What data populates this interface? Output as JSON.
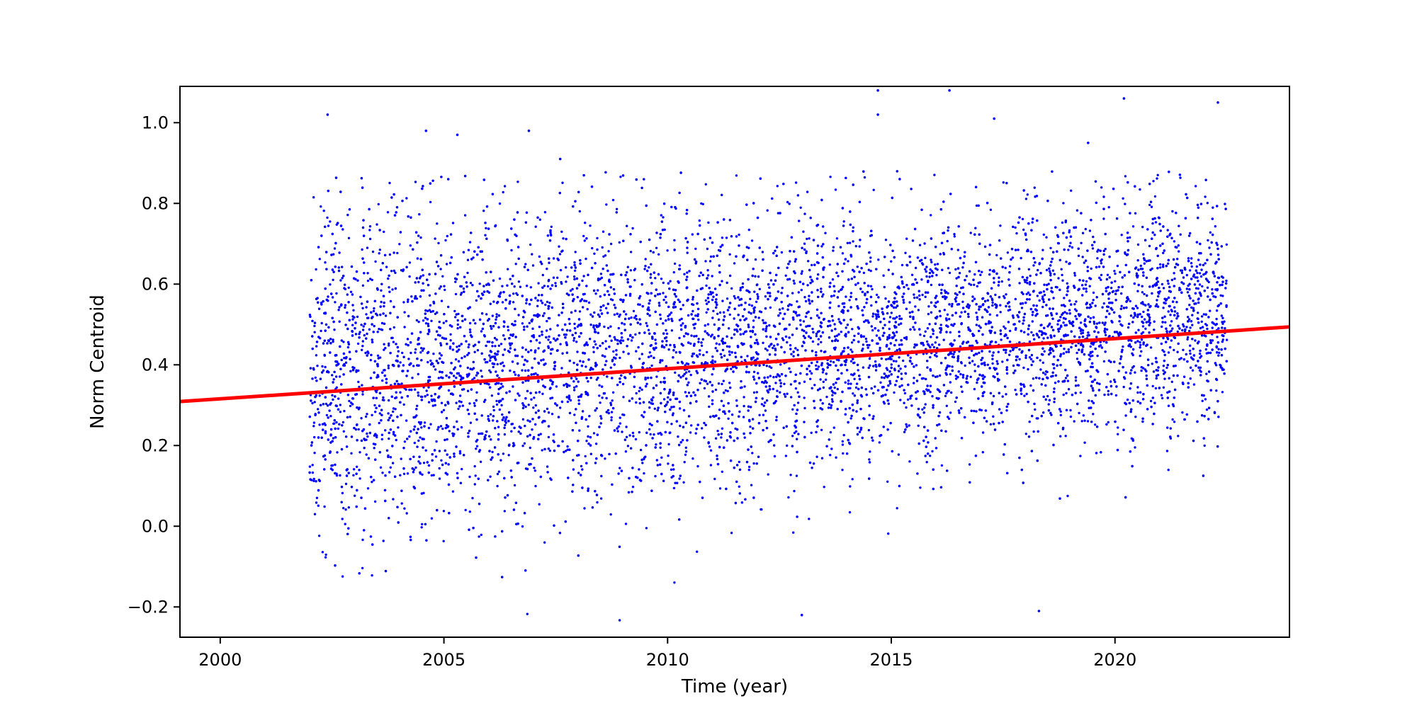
{
  "chart_data": {
    "type": "scatter",
    "title": "",
    "xlabel": "Time (year)",
    "ylabel": "Norm Centroid",
    "xlim": [
      1999.1,
      2023.9
    ],
    "ylim": [
      -0.275,
      1.09
    ],
    "xticks": [
      2000,
      2005,
      2010,
      2015,
      2020
    ],
    "yticks": [
      -0.2,
      0.0,
      0.2,
      0.4,
      0.6,
      0.8,
      1.0
    ],
    "xtick_labels": [
      "2000",
      "2005",
      "2010",
      "2015",
      "2020"
    ],
    "ytick_labels": [
      "−0.2",
      "0.0",
      "0.2",
      "0.4",
      "0.6",
      "0.8",
      "1.0"
    ],
    "grid": false,
    "legend": "none",
    "colors": {
      "points": "#0000ff",
      "trend": "#ff0000",
      "axes": "#000000"
    },
    "series": [
      {
        "kind": "points",
        "x_range": [
          2002.0,
          2022.5
        ],
        "y_center_trend": [
          [
            2002.0,
            0.33
          ],
          [
            2008.0,
            0.38
          ],
          [
            2014.0,
            0.42
          ],
          [
            2022.5,
            0.48
          ]
        ],
        "y_spread": [
          -0.27,
          0.88
        ],
        "notable_points": [
          {
            "x": 2002.4,
            "y": 1.02
          },
          {
            "x": 2004.6,
            "y": 0.98
          },
          {
            "x": 2005.3,
            "y": 0.97
          },
          {
            "x": 2006.9,
            "y": 0.98
          },
          {
            "x": 2007.6,
            "y": 0.91
          },
          {
            "x": 2014.7,
            "y": 1.08
          },
          {
            "x": 2014.7,
            "y": 1.02
          },
          {
            "x": 2016.3,
            "y": 1.08
          },
          {
            "x": 2017.3,
            "y": 1.01
          },
          {
            "x": 2019.4,
            "y": 0.95
          },
          {
            "x": 2020.2,
            "y": 1.06
          },
          {
            "x": 2022.3,
            "y": 1.05
          },
          {
            "x": 2018.3,
            "y": -0.21
          },
          {
            "x": 2013.0,
            "y": -0.22
          }
        ]
      },
      {
        "kind": "trend_line",
        "x": [
          1999.1,
          2023.9
        ],
        "y": [
          0.309,
          0.494
        ]
      }
    ]
  }
}
